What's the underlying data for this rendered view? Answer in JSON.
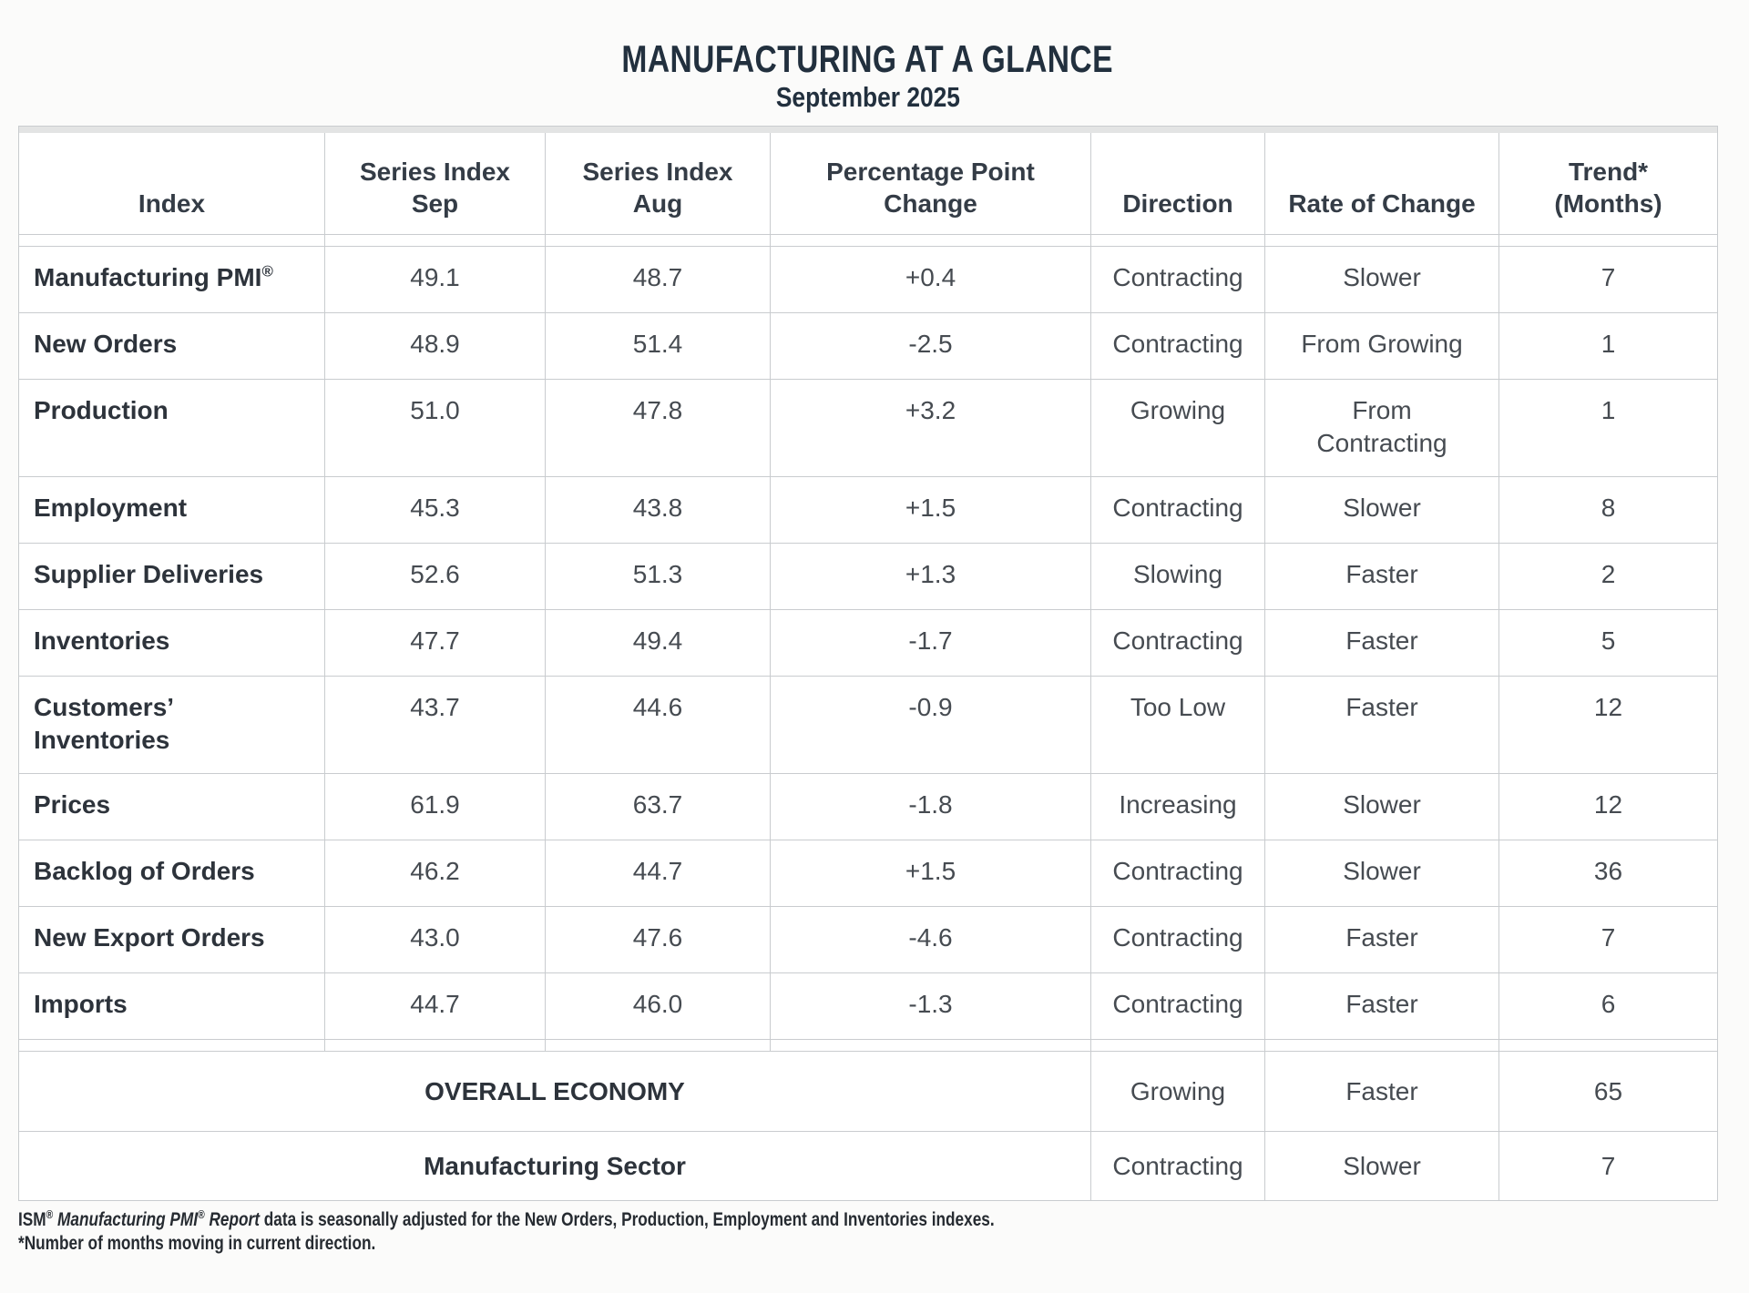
{
  "page": {
    "title": "MANUFACTURING AT A GLANCE",
    "subtitle": "September 2025"
  },
  "table": {
    "reg_symbol": "®",
    "columns": [
      "Index",
      "Series Index\nSep",
      "Series Index\nAug",
      "Percentage Point\nChange",
      "Direction",
      "Rate of Change",
      "Trend*\n(Months)"
    ],
    "rows": [
      {
        "index": "Manufacturing PMI",
        "reg": true,
        "sep": "49.1",
        "aug": "48.7",
        "change": "+0.4",
        "direction": "Contracting",
        "rate": "Slower",
        "trend": "7"
      },
      {
        "index": "New Orders",
        "sep": "48.9",
        "aug": "51.4",
        "change": "-2.5",
        "direction": "Contracting",
        "rate": "From Growing",
        "trend": "1"
      },
      {
        "index": "Production",
        "sep": "51.0",
        "aug": "47.8",
        "change": "+3.2",
        "direction": "Growing",
        "rate": "From\nContracting",
        "trend": "1"
      },
      {
        "index": "Employment",
        "sep": "45.3",
        "aug": "43.8",
        "change": "+1.5",
        "direction": "Contracting",
        "rate": "Slower",
        "trend": "8"
      },
      {
        "index": "Supplier Deliveries",
        "sep": "52.6",
        "aug": "51.3",
        "change": "+1.3",
        "direction": "Slowing",
        "rate": "Faster",
        "trend": "2"
      },
      {
        "index": "Inventories",
        "sep": "47.7",
        "aug": "49.4",
        "change": "-1.7",
        "direction": "Contracting",
        "rate": "Faster",
        "trend": "5"
      },
      {
        "index": "Customers’\nInventories",
        "sep": "43.7",
        "aug": "44.6",
        "change": "-0.9",
        "direction": "Too Low",
        "rate": "Faster",
        "trend": "12"
      },
      {
        "index": "Prices",
        "sep": "61.9",
        "aug": "63.7",
        "change": "-1.8",
        "direction": "Increasing",
        "rate": "Slower",
        "trend": "12"
      },
      {
        "index": "Backlog of Orders",
        "sep": "46.2",
        "aug": "44.7",
        "change": "+1.5",
        "direction": "Contracting",
        "rate": "Slower",
        "trend": "36"
      },
      {
        "index": "New Export Orders",
        "sep": "43.0",
        "aug": "47.6",
        "change": "-4.6",
        "direction": "Contracting",
        "rate": "Faster",
        "trend": "7"
      },
      {
        "index": "Imports",
        "sep": "44.7",
        "aug": "46.0",
        "change": "-1.3",
        "direction": "Contracting",
        "rate": "Faster",
        "trend": "6"
      }
    ],
    "summary_rows": [
      {
        "label": "OVERALL ECONOMY",
        "direction": "Growing",
        "rate": "Faster",
        "trend": "65"
      },
      {
        "label": "Manufacturing Sector",
        "direction": "Contracting",
        "rate": "Slower",
        "trend": "7"
      }
    ]
  },
  "footnote": {
    "prefix": "ISM",
    "registered_mark": "®",
    "italic_name": "Manufacturing PMI",
    "italic_suffix": "Report",
    "line1_rest": "data is seasonally adjusted for the New Orders, Production, Employment and Inventories indexes.",
    "line2": "*Number of months moving in current direction."
  },
  "colors": {
    "title_text": "#22303e",
    "body_text": "#464b51",
    "index_text": "#2d333b",
    "border": "#c9cccf",
    "band": "#e3e4e4",
    "background": "#fbfbfa",
    "footnote_text": "#262b31"
  }
}
